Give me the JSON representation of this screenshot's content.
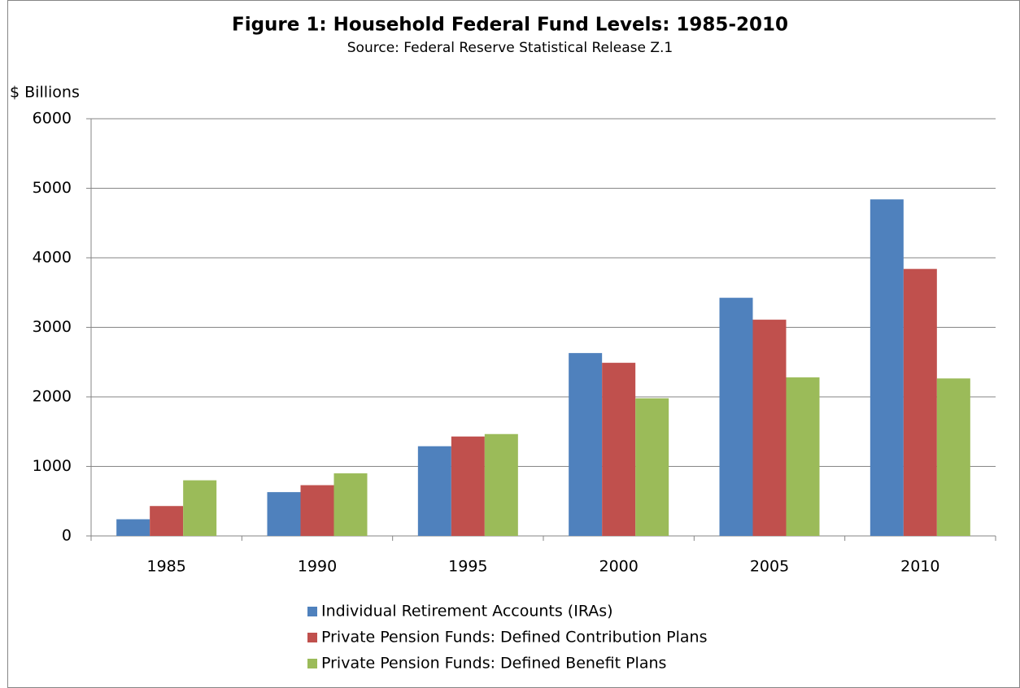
{
  "chart_data": {
    "type": "bar",
    "title": "Figure 1: Household Federal Fund Levels: 1985-2010",
    "subtitle": "Source: Federal Reserve Statistical Release Z.1",
    "y_label": "$ Billions",
    "categories": [
      "1985",
      "1990",
      "1995",
      "2000",
      "2005",
      "2010"
    ],
    "series": [
      {
        "name": "Individual Retirement Accounts (IRAs)",
        "color": "#4f81bd",
        "values": [
          240,
          630,
          1290,
          2630,
          3425,
          4840
        ]
      },
      {
        "name": "Private Pension Funds: Defined Contribution Plans",
        "color": "#c0504d",
        "values": [
          430,
          730,
          1430,
          2490,
          3110,
          3840
        ]
      },
      {
        "name": "Private Pension Funds: Defined Benefit Plans",
        "color": "#9bbb59",
        "values": [
          800,
          900,
          1465,
          1980,
          2280,
          2265
        ]
      }
    ],
    "ylim": [
      0,
      6000
    ],
    "yticks": [
      0,
      1000,
      2000,
      3000,
      4000,
      5000,
      6000
    ],
    "grid": true,
    "legend": "bottom"
  }
}
